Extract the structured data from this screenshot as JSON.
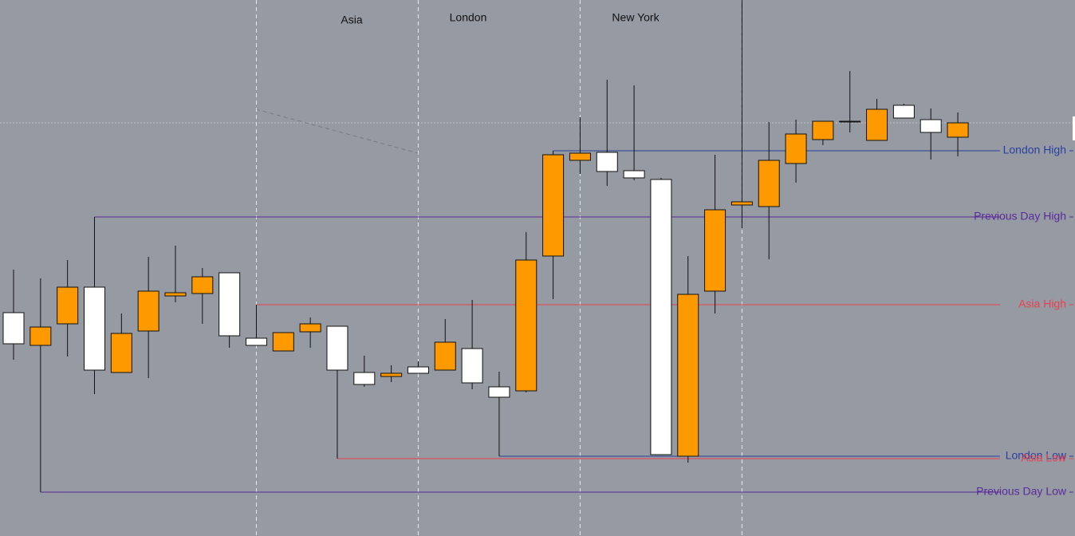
{
  "chart_data": {
    "type": "candlestick",
    "sessions": [
      "Asia",
      "London",
      "New York"
    ],
    "open": [
      280,
      239,
      266,
      312,
      205,
      257,
      301,
      304,
      330,
      248,
      232,
      256,
      263,
      205,
      200,
      212,
      208,
      235,
      187,
      182,
      351,
      471,
      481,
      458,
      447,
      100,
      307,
      415,
      413,
      467,
      497,
      520,
      496,
      540,
      522,
      500
    ],
    "high": [
      334,
      323,
      346,
      400,
      279,
      350,
      364,
      336,
      330,
      290,
      255,
      274,
      263,
      226,
      214,
      219,
      272,
      296,
      206,
      381,
      483,
      525,
      572,
      565,
      449,
      351,
      478,
      672,
      519,
      522,
      520,
      583,
      548,
      542,
      536,
      531
    ],
    "low": [
      221,
      55,
      225,
      178,
      205,
      198,
      293,
      266,
      236,
      239,
      232,
      236,
      97,
      187,
      193,
      204,
      208,
      184,
      100,
      180,
      297,
      454,
      439,
      446,
      102,
      92,
      279,
      386,
      347,
      443,
      490,
      506,
      496,
      524,
      472,
      476
    ],
    "close": [
      241,
      262,
      312,
      208,
      254,
      307,
      305,
      325,
      251,
      239,
      255,
      266,
      208,
      190,
      204,
      204,
      243,
      192,
      174,
      346,
      478,
      480,
      457,
      449,
      102,
      303,
      409,
      419,
      471,
      504,
      520,
      520,
      535,
      524,
      506,
      518
    ],
    "up_color": "#ff9900",
    "down_color": "#ffffff",
    "levels": [
      {
        "name": "London High",
        "value": 483,
        "color": "#2b3f9e"
      },
      {
        "name": "Previous Day High",
        "value": 400,
        "color": "#5a2a9a"
      },
      {
        "name": "Asia High",
        "value": 290,
        "color": "#e8404f"
      },
      {
        "name": "London Low",
        "value": 100,
        "color": "#2b3f9e"
      },
      {
        "name": "Asia Low",
        "value": 97,
        "color": "#e8404f"
      },
      {
        "name": "Previous Day Low",
        "value": 55,
        "color": "#5a2a9a"
      }
    ],
    "ylim": [
      0,
      672
    ]
  }
}
